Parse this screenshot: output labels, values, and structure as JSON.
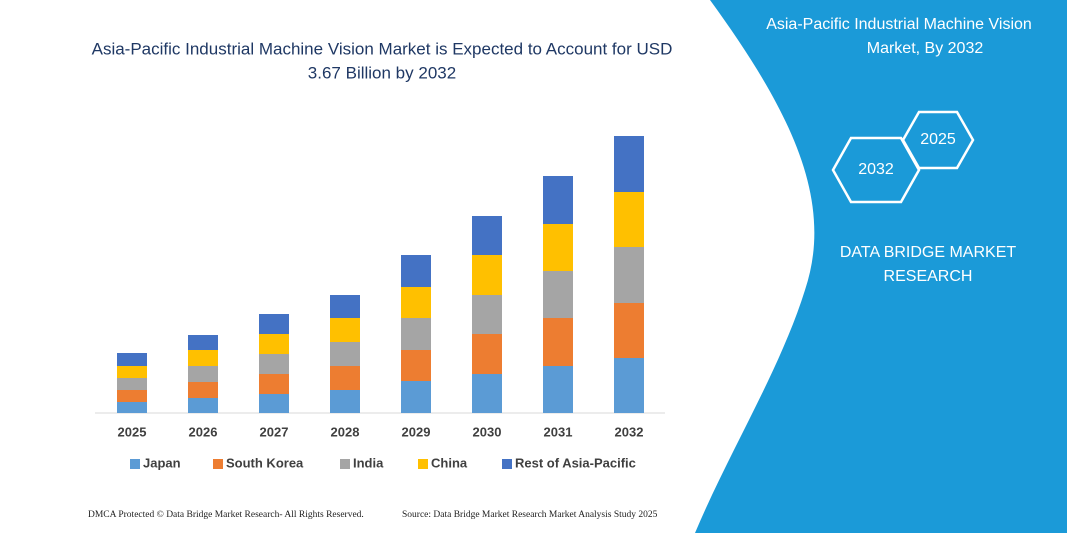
{
  "chart_data": {
    "type": "stacked-bar",
    "title": "Asia-Pacific Industrial Machine Vision Market is Expected to Account for USD 3.67 Billion by 2032",
    "categories": [
      "2025",
      "2026",
      "2027",
      "2028",
      "2029",
      "2030",
      "2031",
      "2032"
    ],
    "series": [
      {
        "name": "Japan",
        "color": "#5b9bd5",
        "values": [
          11,
          15,
          19,
          23,
          32,
          39,
          47,
          55
        ]
      },
      {
        "name": "South Korea",
        "color": "#ed7d31",
        "values": [
          12,
          16,
          20,
          24,
          31,
          40,
          48,
          55
        ]
      },
      {
        "name": "India",
        "color": "#a5a5a5",
        "values": [
          12,
          16,
          20,
          24,
          32,
          39,
          47,
          56
        ]
      },
      {
        "name": "China",
        "color": "#ffc000",
        "values": [
          12,
          16,
          20,
          24,
          31,
          40,
          47,
          55
        ]
      },
      {
        "name": "Rest of Asia-Pacific",
        "color": "#4472c4",
        "values": [
          13,
          15,
          20,
          23,
          32,
          39,
          48,
          56
        ]
      }
    ],
    "ylim": [
      0,
      300
    ],
    "legend": "bottom"
  },
  "panel": {
    "title": "Asia-Pacific Industrial Machine Vision Market, By 2032",
    "hex_labels": [
      "2025",
      "2032"
    ],
    "brand": "DATA BRIDGE MARKET RESEARCH"
  },
  "footer": {
    "left": "DMCA Protected © Data Bridge Market Research- All Rights Reserved.",
    "right": "Source: Data Bridge Market Research Market Analysis Study 2025"
  }
}
